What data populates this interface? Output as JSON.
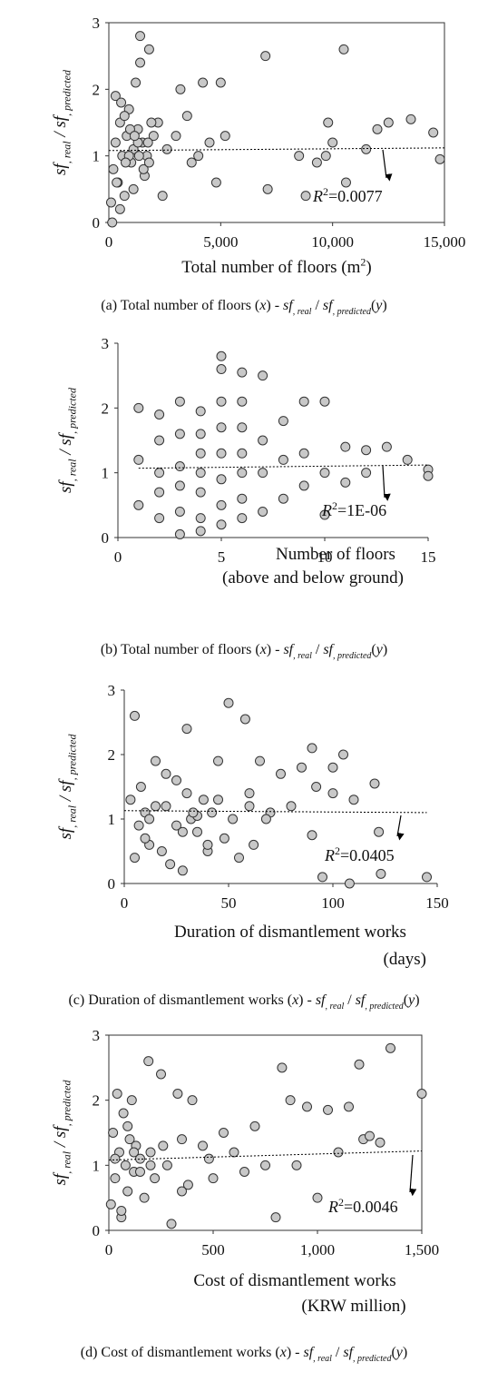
{
  "chart_data": [
    {
      "type": "scatter",
      "frame": true,
      "color": "#c8c8c8",
      "y_label": [
        "sf",
        ", real",
        " / ",
        "sf",
        ", predicted"
      ],
      "x_label": [
        [
          "Total number of floors (m",
          "2",
          ")"
        ]
      ],
      "caption": [
        "(a) Total number of floors (",
        "x",
        ") - ",
        "sf",
        ", real",
        " / ",
        "sf",
        ", predicted",
        "(",
        "y",
        ")"
      ],
      "r2_label": [
        "R",
        "2",
        "=0.0077"
      ],
      "xlim": [
        0,
        15000
      ],
      "ylim": [
        0,
        3
      ],
      "xticks": [
        0,
        {
          "value": 5000,
          "label": "5,000"
        },
        {
          "value": 10000,
          "label": "10,000"
        },
        {
          "value": 15000,
          "label": "15,000"
        }
      ],
      "yticks": [
        0,
        1,
        2,
        3
      ],
      "trend_x": [
        0,
        15000
      ],
      "trend_y": [
        1.08,
        1.12
      ],
      "x": [
        100,
        200,
        300,
        400,
        500,
        600,
        700,
        800,
        900,
        1000,
        1100,
        1200,
        1300,
        1400,
        1500,
        1600,
        1700,
        1800,
        2000,
        2200,
        2400,
        2600,
        300,
        500,
        700,
        900,
        1100,
        1300,
        150,
        350,
        550,
        750,
        950,
        1150,
        1350,
        1550,
        1750,
        1900,
        1400,
        1800,
        3000,
        3200,
        3500,
        3700,
        4000,
        4200,
        4500,
        4800,
        5000,
        5200,
        7000,
        7100,
        8500,
        8800,
        9300,
        9700,
        9800,
        10000,
        10500,
        10600,
        11500,
        12000,
        12500,
        13500,
        14500,
        14800
      ],
      "values": [
        0.3,
        0.8,
        1.2,
        0.6,
        1.5,
        1.0,
        0.4,
        1.3,
        1.7,
        0.9,
        1.1,
        2.1,
        1.4,
        2.8,
        1.2,
        0.7,
        1.0,
        2.6,
        1.3,
        1.5,
        0.4,
        1.1,
        1.9,
        0.2,
        1.6,
        1.0,
        0.5,
        1.2,
        0.0,
        0.6,
        1.8,
        0.9,
        1.4,
        1.3,
        1.0,
        0.8,
        1.2,
        1.5,
        2.4,
        0.9,
        1.3,
        2.0,
        1.6,
        0.9,
        1.0,
        2.1,
        1.2,
        0.6,
        2.1,
        1.3,
        2.5,
        0.5,
        1.0,
        0.4,
        0.9,
        1.0,
        1.5,
        1.2,
        2.6,
        0.6,
        1.1,
        1.4,
        1.5,
        1.55,
        1.35,
        0.95
      ]
    },
    {
      "type": "scatter",
      "frame": false,
      "color": "#c8c8c8",
      "y_label": [
        "sf",
        ", real",
        " / ",
        "sf",
        ", predicted"
      ],
      "x_label": [
        [
          "Number of floors"
        ],
        [
          "(above and below ground)"
        ]
      ],
      "caption": [
        "(b) Total number of floors (",
        "x",
        ") - ",
        "sf",
        ", real",
        " / ",
        "sf",
        ", predicted",
        "(",
        "y",
        ")"
      ],
      "r2_label": [
        "R",
        "2",
        "=1E-06"
      ],
      "xlim": [
        0,
        15
      ],
      "ylim": [
        0,
        3
      ],
      "xticks": [
        0,
        5,
        10,
        15
      ],
      "yticks": [
        0,
        1,
        2,
        3
      ],
      "trend_x": [
        1,
        15
      ],
      "trend_y": [
        1.07,
        1.12
      ],
      "x": [
        1,
        1,
        1,
        2,
        2,
        2,
        2,
        2,
        3,
        3,
        3,
        3,
        3,
        3,
        4,
        4,
        4,
        4,
        4,
        4,
        4,
        5,
        5,
        5,
        5,
        5,
        5,
        5,
        5,
        6,
        6,
        6,
        6,
        6,
        6,
        6,
        7,
        7,
        7,
        7,
        8,
        8,
        8,
        9,
        9,
        9,
        10,
        10,
        10,
        11,
        11,
        12,
        12,
        13,
        14,
        15,
        15
      ],
      "values": [
        2.0,
        1.2,
        0.5,
        1.9,
        1.5,
        1.0,
        0.7,
        0.3,
        2.1,
        1.6,
        1.1,
        0.8,
        0.4,
        0.05,
        1.95,
        1.6,
        1.3,
        1.0,
        0.7,
        0.3,
        0.1,
        2.8,
        2.6,
        2.1,
        1.7,
        1.3,
        0.9,
        0.5,
        0.2,
        2.55,
        2.1,
        1.7,
        1.3,
        1.0,
        0.6,
        0.3,
        2.5,
        1.5,
        1.0,
        0.4,
        1.8,
        1.2,
        0.6,
        2.1,
        1.3,
        0.8,
        2.1,
        1.0,
        0.35,
        1.4,
        0.85,
        1.35,
        1.0,
        1.4,
        1.2,
        1.05,
        0.95
      ]
    },
    {
      "type": "scatter",
      "frame": false,
      "color": "#c8c8c8",
      "y_label": [
        "sf",
        ", real",
        " / ",
        "sf",
        ", predicted"
      ],
      "x_label": [
        [
          "Duration of dismantlement works"
        ],
        [
          "(days)"
        ]
      ],
      "caption": [
        "(c) Duration of dismantlement works (",
        "x",
        ") - ",
        "sf",
        ", real",
        " / ",
        "sf",
        ", predicted",
        "(",
        "y",
        ")"
      ],
      "r2_label": [
        "R",
        "2",
        "=0.0405"
      ],
      "xlim": [
        0,
        150
      ],
      "ylim": [
        0,
        3
      ],
      "xticks": [
        0,
        50,
        100,
        150
      ],
      "yticks": [
        0,
        1,
        2,
        3
      ],
      "trend_x": [
        0,
        145
      ],
      "trend_y": [
        1.13,
        1.1
      ],
      "x": [
        3,
        5,
        7,
        8,
        10,
        12,
        15,
        18,
        20,
        22,
        25,
        28,
        30,
        32,
        35,
        38,
        40,
        42,
        45,
        48,
        50,
        52,
        55,
        58,
        60,
        62,
        65,
        70,
        75,
        80,
        85,
        90,
        92,
        95,
        100,
        105,
        108,
        110,
        120,
        122,
        145,
        5,
        10,
        15,
        20,
        25,
        30,
        35,
        40,
        45,
        12,
        28,
        33,
        60,
        68,
        90,
        100,
        123
      ],
      "values": [
        1.3,
        2.6,
        0.9,
        1.5,
        1.1,
        0.6,
        1.9,
        0.5,
        1.2,
        0.3,
        1.6,
        0.2,
        2.4,
        1.0,
        0.8,
        1.3,
        0.5,
        1.1,
        1.9,
        0.7,
        2.8,
        1.0,
        0.4,
        2.55,
        1.2,
        0.6,
        1.9,
        1.1,
        1.7,
        1.2,
        1.8,
        2.1,
        1.5,
        0.1,
        1.4,
        2.0,
        0.0,
        1.3,
        1.55,
        0.8,
        0.1,
        0.4,
        0.7,
        1.2,
        1.7,
        0.9,
        1.4,
        1.05,
        0.6,
        1.3,
        1.0,
        0.8,
        1.1,
        1.4,
        1.0,
        0.75,
        1.8,
        0.15
      ]
    },
    {
      "type": "scatter",
      "frame": true,
      "color": "#c8c8c8",
      "y_label": [
        "sf",
        ", real",
        " / ",
        "sf",
        ", predicted"
      ],
      "x_label": [
        [
          "Cost of dismantlement works"
        ],
        [
          "(KRW million)"
        ]
      ],
      "caption": [
        "(d) Cost of dismantlement works (",
        "x",
        ") - ",
        "sf",
        ", real",
        " / ",
        "sf",
        ", predicted",
        "(",
        "y",
        ")"
      ],
      "r2_label": [
        "R",
        "2",
        "=0.0046"
      ],
      "xlim": [
        0,
        1500
      ],
      "ylim": [
        0,
        3
      ],
      "xticks": [
        0,
        500,
        {
          "value": 1000,
          "label": "1,000"
        },
        {
          "value": 1500,
          "label": "1,500"
        }
      ],
      "yticks": [
        0,
        1,
        2,
        3
      ],
      "trend_x": [
        0,
        1500
      ],
      "trend_y": [
        1.08,
        1.22
      ],
      "x": [
        10,
        20,
        30,
        40,
        50,
        60,
        70,
        80,
        90,
        100,
        110,
        120,
        130,
        150,
        170,
        190,
        200,
        220,
        250,
        280,
        300,
        330,
        350,
        380,
        400,
        450,
        480,
        500,
        550,
        600,
        650,
        700,
        750,
        800,
        830,
        870,
        900,
        950,
        1000,
        1050,
        1100,
        1150,
        1200,
        1220,
        1250,
        1300,
        1350,
        1500,
        30,
        60,
        90,
        120,
        150,
        200,
        260,
        350
      ],
      "values": [
        0.4,
        1.5,
        0.8,
        2.1,
        1.2,
        0.2,
        1.8,
        1.0,
        0.6,
        1.4,
        2.0,
        0.9,
        1.3,
        1.1,
        0.5,
        2.6,
        1.2,
        0.8,
        2.4,
        1.0,
        0.1,
        2.1,
        1.4,
        0.7,
        2.0,
        1.3,
        1.1,
        0.8,
        1.5,
        1.2,
        0.9,
        1.6,
        1.0,
        0.2,
        2.5,
        2.0,
        1.0,
        1.9,
        0.5,
        1.85,
        1.2,
        1.9,
        2.55,
        1.4,
        1.45,
        1.35,
        2.8,
        2.1,
        1.1,
        0.3,
        1.6,
        1.2,
        0.9,
        1.0,
        1.3,
        0.6
      ]
    }
  ]
}
